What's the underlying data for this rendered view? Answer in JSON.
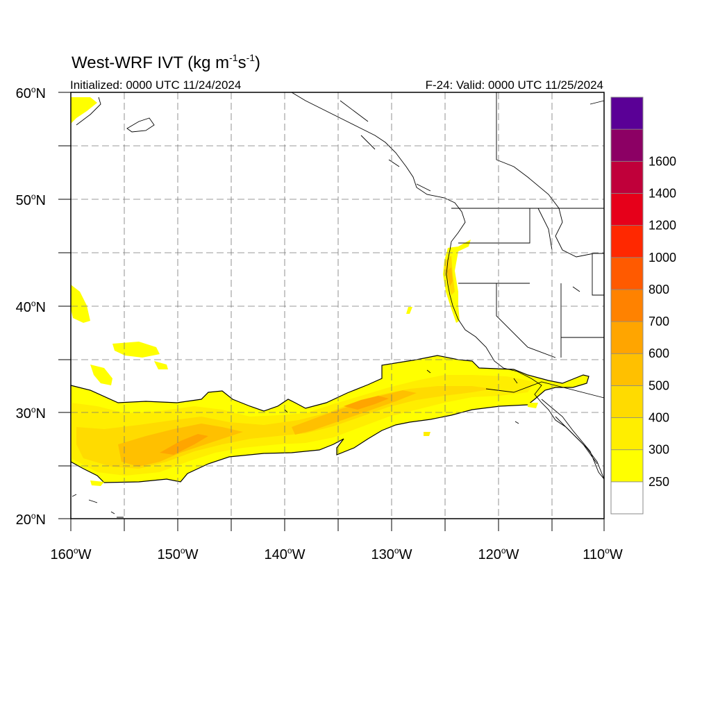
{
  "title": {
    "main": "West-WRF IVT (kg m",
    "sup1": "-1",
    "mid": "s",
    "sup2": "-1",
    "end": ")"
  },
  "initialized": "Initialized: 0000 UTC 11/24/2024",
  "valid": "F-24: Valid: 0000 UTC 11/25/2024",
  "lat_labels": [
    {
      "deg": "60",
      "hem": "N"
    },
    {
      "deg": "50",
      "hem": "N"
    },
    {
      "deg": "40",
      "hem": "N"
    },
    {
      "deg": "30",
      "hem": "N"
    },
    {
      "deg": "20",
      "hem": "N"
    }
  ],
  "lon_labels": [
    {
      "deg": "160",
      "hem": "W"
    },
    {
      "deg": "150",
      "hem": "W"
    },
    {
      "deg": "140",
      "hem": "W"
    },
    {
      "deg": "130",
      "hem": "W"
    },
    {
      "deg": "120",
      "hem": "W"
    },
    {
      "deg": "110",
      "hem": "W"
    }
  ],
  "map_extent": {
    "lon": [
      -160,
      -110
    ],
    "lat": [
      20,
      60
    ]
  },
  "colorbar": {
    "levels": [
      {
        "label": "250",
        "color": "#ffffff"
      },
      {
        "label": "300",
        "color": "#ffff00"
      },
      {
        "label": "400",
        "color": "#ffee00"
      },
      {
        "label": "500",
        "color": "#ffdb00"
      },
      {
        "label": "600",
        "color": "#ffc000"
      },
      {
        "label": "700",
        "color": "#ffa500"
      },
      {
        "label": "800",
        "color": "#ff8200"
      },
      {
        "label": "1000",
        "color": "#ff5a00"
      },
      {
        "label": "1200",
        "color": "#ff2800"
      },
      {
        "label": "1400",
        "color": "#e6001a"
      },
      {
        "label": "1600",
        "color": "#c0003a"
      },
      {
        "label": "",
        "color": "#8c0064"
      },
      {
        "label": "",
        "color": "#5a0096"
      }
    ]
  }
}
